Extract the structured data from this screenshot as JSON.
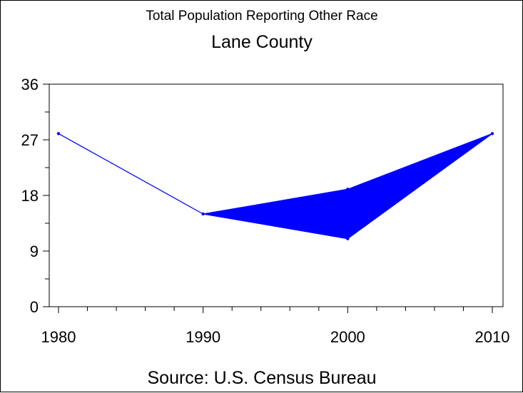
{
  "chart_data": {
    "type": "line",
    "title": "Total Population Reporting Other Race",
    "subtitle": "Lane County",
    "footnote": "Source: U.S. Census Bureau",
    "x": [
      1980,
      1990,
      2000,
      2010
    ],
    "series_upper": [
      28,
      15,
      19,
      28
    ],
    "series_lower": [
      28,
      15,
      11,
      28
    ],
    "x_ticks": [
      "1980",
      "1990",
      "2000",
      "2010"
    ],
    "y_ticks": [
      "0",
      "9",
      "18",
      "27",
      "36"
    ],
    "ylim": [
      0,
      36
    ],
    "xlim": [
      1980,
      2010
    ],
    "band_fill": true,
    "color": "#0000ff",
    "grid": false
  }
}
